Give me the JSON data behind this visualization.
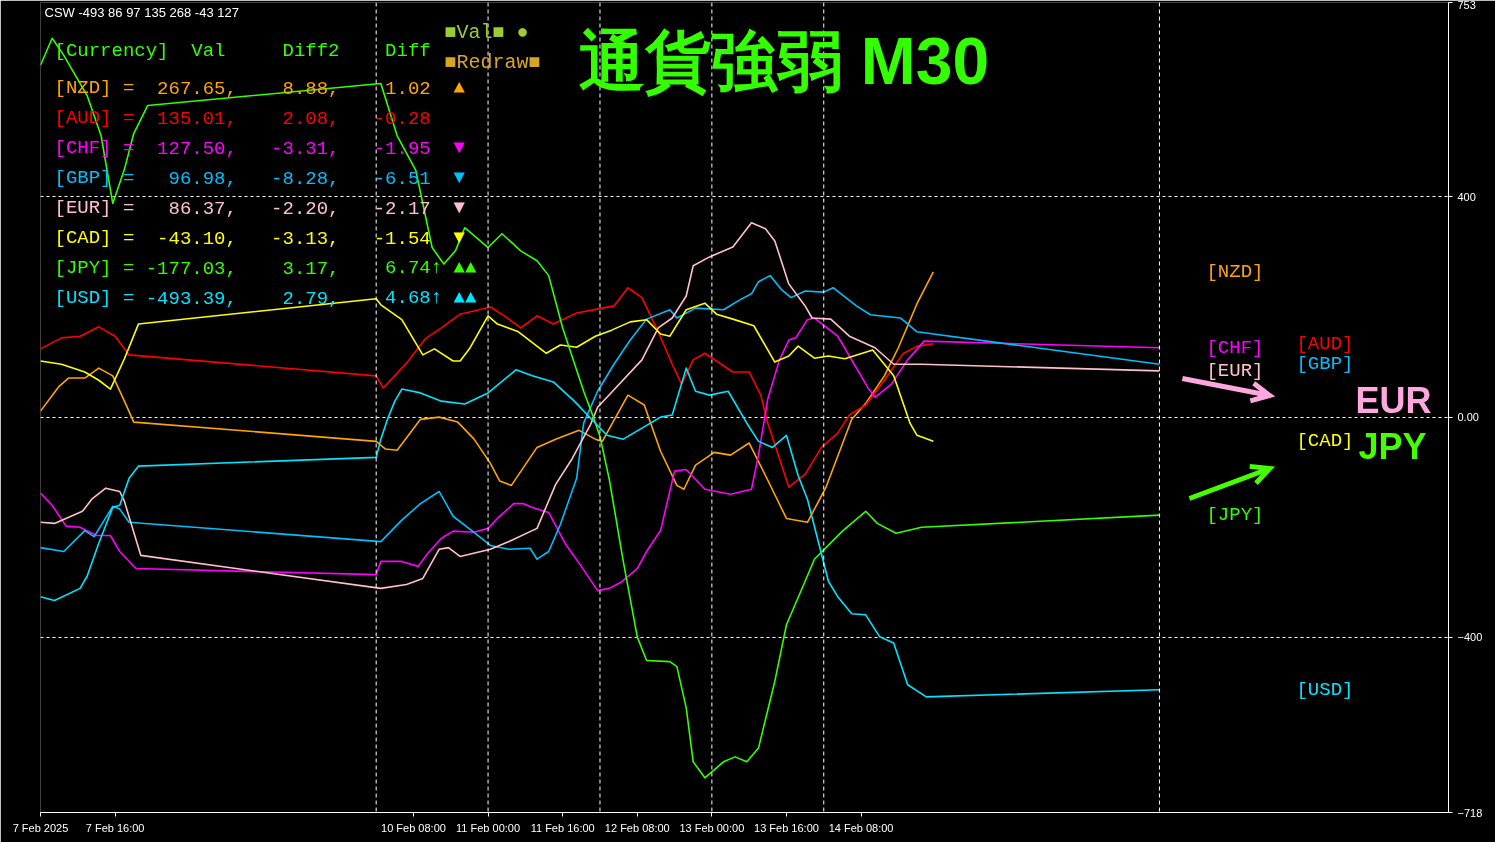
{
  "chart_data": {
    "type": "line",
    "title": "通貨強弱 M30",
    "line_style": "solid",
    "grid": "y",
    "legend": false,
    "annotations": [
      "CSW -493 86 97 135 268 -43 127",
      "[Currency]  Val     Diff2    Diff",
      "[NZD] =  267.65,    8.88,    1.02  ▲",
      "[AUD] =  135.01,    2.08,   -0.28",
      "[CHF] =  127.50,   -3.31,   -1.95  ▼",
      "[GBP] =   96.98,   -8.28,   -6.51  ▼",
      "[EUR] =   86.37,   -2.20,   -2.17  ▼",
      "[CAD] =  -43.10,   -3.13,   -1.54  ▼",
      "[JPY] = -177.03,    3.17,    6.74↑ ▲▲",
      "[USD] = -493.39,    2.79,    4.68↑ ▲▲",
      "■Val■ ●",
      "■Redraw■",
      "EUR",
      "JPY"
    ],
    "xlim": [
      "2025-02-07T00:00",
      "2025-02-19T14:00"
    ],
    "xticks": [
      {
        "value": "2025-02-07T00:00",
        "label": "7 Feb 2025"
      },
      {
        "value": "2025-02-07T16:00",
        "label": "7 Feb 16:00"
      },
      {
        "value": "2025-02-10T08:00",
        "label": "10 Feb 08:00"
      },
      {
        "value": "2025-02-11T00:00",
        "label": "11 Feb 00:00"
      },
      {
        "value": "2025-02-11T16:00",
        "label": "11 Feb 16:00"
      },
      {
        "value": "2025-02-12T08:00",
        "label": "12 Feb 08:00"
      },
      {
        "value": "2025-02-13T00:00",
        "label": "13 Feb 00:00"
      },
      {
        "value": "2025-02-13T16:00",
        "label": "13 Feb 16:00"
      },
      {
        "value": "2025-02-14T08:00",
        "label": "14 Feb 08:00"
      }
    ],
    "ylim": [
      -718,
      753
    ],
    "yticks": [
      753,
      400,
      {
        "value": 0,
        "label": "0.00"
      },
      -400,
      -718
    ],
    "ref_lines": [
      {
        "axis": "x",
        "value": "2025-02-10T00:00",
        "label": null,
        "color": "#ffffff",
        "line_style": "dashed"
      },
      {
        "axis": "x",
        "value": "2025-02-11T00:00",
        "label": null,
        "color": "#ffffff",
        "line_style": "dashed"
      },
      {
        "axis": "x",
        "value": "2025-02-12T00:00",
        "label": null,
        "color": "#ffffff",
        "line_style": "dashed"
      },
      {
        "axis": "x",
        "value": "2025-02-13T00:00",
        "label": null,
        "color": "#ffffff",
        "line_style": "dashed"
      },
      {
        "axis": "x",
        "value": "2025-02-14T00:00",
        "label": null,
        "color": "#ffffff",
        "line_style": "dashed"
      },
      {
        "axis": "x",
        "value": "2025-02-17T00:00",
        "label": null,
        "color": "#ffffff",
        "line_style": "dashed"
      }
    ],
    "series": [
      {
        "name": "[NZD]",
        "color": "#ffa500",
        "x": [
          "2025-02-07T00:00",
          "2025-02-07T04:00",
          "2025-02-07T06:00",
          "2025-02-07T09:30",
          "2025-02-07T12:30",
          "2025-02-07T15:30",
          "2025-02-07T18:00",
          "2025-02-07T20:00",
          "2025-02-10T00:00",
          "2025-02-10T02:00",
          "2025-02-10T04:30",
          "2025-02-10T09:30",
          "2025-02-10T13:30",
          "2025-02-10T17:30",
          "2025-02-10T21:00",
          "2025-02-11T00:30",
          "2025-02-11T02:30",
          "2025-02-11T05:00",
          "2025-02-11T10:30",
          "2025-02-11T14:30",
          "2025-02-11T19:30",
          "2025-02-11T23:00",
          "2025-02-12T00:30",
          "2025-02-12T06:00",
          "2025-02-12T09:30",
          "2025-02-12T13:00",
          "2025-02-12T16:30",
          "2025-02-12T18:00",
          "2025-02-12T20:30",
          "2025-02-13T00:30",
          "2025-02-13T04:00",
          "2025-02-13T08:00",
          "2025-02-13T11:30",
          "2025-02-13T16:00",
          "2025-02-13T20:30",
          "2025-02-14T00:30",
          "2025-02-14T06:00",
          "2025-02-14T09:00",
          "2025-02-14T13:00",
          "2025-02-14T16:00",
          "2025-02-14T20:00",
          "2025-02-14T23:30"
        ],
        "values": [
          11,
          56,
          71,
          71,
          89,
          75,
          29,
          -9,
          -44,
          -58,
          -60,
          -4,
          0,
          -9,
          -40,
          -84,
          -116,
          -124,
          -55,
          -40,
          -24,
          -40,
          -44,
          40,
          22,
          -62,
          -124,
          -131,
          -87,
          -64,
          -69,
          -47,
          -106,
          -184,
          -191,
          -127,
          -4,
          25,
          75,
          126,
          206,
          264
        ]
      },
      {
        "name": "[AUD]",
        "color": "#ff0000",
        "x": [
          "2025-02-07T00:00",
          "2025-02-07T04:30",
          "2025-02-07T08:30",
          "2025-02-07T12:30",
          "2025-02-07T16:00",
          "2025-02-07T19:00",
          "2025-02-10T00:00",
          "2025-02-10T01:30",
          "2025-02-10T06:30",
          "2025-02-10T10:30",
          "2025-02-10T14:00",
          "2025-02-10T18:00",
          "2025-02-11T00:30",
          "2025-02-11T03:30",
          "2025-02-11T07:00",
          "2025-02-11T10:30",
          "2025-02-11T14:00",
          "2025-02-11T19:00",
          "2025-02-12T00:00",
          "2025-02-12T03:00",
          "2025-02-12T06:00",
          "2025-02-12T09:00",
          "2025-02-12T12:30",
          "2025-02-12T15:30",
          "2025-02-12T17:30",
          "2025-02-12T20:00",
          "2025-02-12T22:30",
          "2025-02-13T04:30",
          "2025-02-13T08:00",
          "2025-02-13T10:30",
          "2025-02-13T12:00",
          "2025-02-13T16:30",
          "2025-02-13T20:00",
          "2025-02-13T23:30",
          "2025-02-14T03:00",
          "2025-02-14T05:30",
          "2025-02-14T09:00",
          "2025-02-14T13:00",
          "2025-02-14T17:00",
          "2025-02-14T20:00",
          "2025-02-14T23:30"
        ],
        "values": [
          124,
          144,
          147,
          164,
          147,
          113,
          75,
          53,
          98,
          142,
          162,
          187,
          200,
          184,
          162,
          184,
          169,
          189,
          197,
          202,
          235,
          217,
          155,
          96,
          60,
          104,
          116,
          82,
          82,
          40,
          -11,
          -127,
          -104,
          -55,
          -29,
          4,
          22,
          67,
          115,
          129,
          133
        ]
      },
      {
        "name": "[CHF]",
        "color": "#ff00ff",
        "x": [
          "2025-02-07T00:00",
          "2025-02-07T02:30",
          "2025-02-07T05:30",
          "2025-02-07T08:30",
          "2025-02-07T12:00",
          "2025-02-07T15:00",
          "2025-02-07T17:00",
          "2025-02-07T20:30",
          "2025-02-10T00:00",
          "2025-02-10T01:00",
          "2025-02-10T05:30",
          "2025-02-10T09:00",
          "2025-02-10T11:00",
          "2025-02-10T14:00",
          "2025-02-10T16:30",
          "2025-02-10T21:00",
          "2025-02-11T00:00",
          "2025-02-11T02:00",
          "2025-02-11T05:30",
          "2025-02-11T07:30",
          "2025-02-11T09:30",
          "2025-02-11T13:00",
          "2025-02-11T16:30",
          "2025-02-11T20:00",
          "2025-02-11T23:30",
          "2025-02-12T02:00",
          "2025-02-12T04:30",
          "2025-02-12T08:00",
          "2025-02-12T10:00",
          "2025-02-12T13:00",
          "2025-02-12T16:00",
          "2025-02-12T18:30",
          "2025-02-12T22:30",
          "2025-02-13T04:00",
          "2025-02-13T08:30",
          "2025-02-13T10:00",
          "2025-02-13T12:00",
          "2025-02-13T14:30",
          "2025-02-13T16:30",
          "2025-02-13T18:00",
          "2025-02-13T20:30",
          "2025-02-13T22:00",
          "2025-02-14T03:00",
          "2025-02-14T05:30",
          "2025-02-14T09:30",
          "2025-02-14T11:00",
          "2025-02-14T14:30",
          "2025-02-14T18:00",
          "2025-02-14T21:30",
          "2025-02-17T00:00"
        ],
        "values": [
          -138,
          -160,
          -198,
          -200,
          -215,
          -215,
          -244,
          -275,
          -286,
          -262,
          -262,
          -271,
          -248,
          -220,
          -207,
          -209,
          -202,
          -184,
          -157,
          -157,
          -164,
          -173,
          -229,
          -271,
          -315,
          -311,
          -300,
          -275,
          -244,
          -206,
          -98,
          -95,
          -131,
          -140,
          -131,
          -69,
          33,
          104,
          140,
          144,
          177,
          180,
          147,
          111,
          53,
          36,
          60,
          104,
          138,
          126
        ]
      },
      {
        "name": "[GBP]",
        "color": "#00bfff",
        "x": [
          "2025-02-07T00:00",
          "2025-02-07T05:00",
          "2025-02-07T09:30",
          "2025-02-07T11:30",
          "2025-02-07T15:30",
          "2025-02-07T17:00",
          "2025-02-07T19:00",
          "2025-02-10T01:00",
          "2025-02-10T05:30",
          "2025-02-10T09:30",
          "2025-02-10T13:30",
          "2025-02-10T16:30",
          "2025-02-10T20:30",
          "2025-02-11T00:30",
          "2025-02-11T04:30",
          "2025-02-11T09:00",
          "2025-02-11T10:30",
          "2025-02-11T13:00",
          "2025-02-11T15:30",
          "2025-02-11T19:00",
          "2025-02-11T20:30",
          "2025-02-11T23:30",
          "2025-02-12T03:00",
          "2025-02-12T06:30",
          "2025-02-12T10:00",
          "2025-02-12T15:00",
          "2025-02-12T16:30",
          "2025-02-12T20:30",
          "2025-02-13T02:30",
          "2025-02-13T06:00",
          "2025-02-13T08:30",
          "2025-02-13T10:00",
          "2025-02-13T12:30",
          "2025-02-13T15:00",
          "2025-02-13T17:00",
          "2025-02-13T20:00",
          "2025-02-14T00:00",
          "2025-02-14T02:00",
          "2025-02-14T07:00",
          "2025-02-14T10:00",
          "2025-02-14T16:30",
          "2025-02-14T20:00",
          "2025-02-17T00:00"
        ],
        "values": [
          -237,
          -244,
          -206,
          -217,
          -162,
          -167,
          -191,
          -226,
          -187,
          -157,
          -135,
          -180,
          -206,
          -233,
          -240,
          -238,
          -258,
          -244,
          -195,
          -111,
          -11,
          47,
          96,
          140,
          178,
          195,
          180,
          198,
          195,
          213,
          224,
          246,
          257,
          231,
          217,
          229,
          227,
          235,
          202,
          186,
          180,
          155,
          96
        ]
      },
      {
        "name": "[EUR]",
        "color": "#ffc0cb",
        "x": [
          "2025-02-07T00:00",
          "2025-02-07T03:00",
          "2025-02-07T09:00",
          "2025-02-07T11:00",
          "2025-02-07T14:00",
          "2025-02-07T17:00",
          "2025-02-07T18:00",
          "2025-02-07T21:30",
          "2025-02-10T01:00",
          "2025-02-10T06:30",
          "2025-02-10T10:00",
          "2025-02-10T13:30",
          "2025-02-10T15:30",
          "2025-02-10T18:00",
          "2025-02-11T00:30",
          "2025-02-11T04:30",
          "2025-02-11T10:30",
          "2025-02-11T14:30",
          "2025-02-11T18:00",
          "2025-02-11T22:00",
          "2025-02-11T23:30",
          "2025-02-12T09:00",
          "2025-02-12T12:30",
          "2025-02-12T15:30",
          "2025-02-12T18:30",
          "2025-02-12T20:00",
          "2025-02-12T23:30",
          "2025-02-13T04:30",
          "2025-02-13T08:30",
          "2025-02-13T11:30",
          "2025-02-13T13:30",
          "2025-02-13T16:30",
          "2025-02-13T20:00",
          "2025-02-13T21:30",
          "2025-02-14T01:30",
          "2025-02-14T05:30",
          "2025-02-14T11:00",
          "2025-02-14T15:00",
          "2025-02-14T21:00",
          "2025-02-17T00:00"
        ],
        "values": [
          -191,
          -193,
          -171,
          -149,
          -129,
          -135,
          -153,
          -251,
          -311,
          -304,
          -293,
          -240,
          -237,
          -253,
          -240,
          -226,
          -202,
          -122,
          -76,
          -13,
          18,
          104,
          162,
          180,
          220,
          275,
          291,
          309,
          353,
          342,
          320,
          242,
          202,
          180,
          178,
          147,
          126,
          96,
          96,
          84
        ]
      },
      {
        "name": "[CAD]",
        "color": "#ffff00",
        "x": [
          "2025-02-07T00:00",
          "2025-02-07T04:30",
          "2025-02-07T09:30",
          "2025-02-07T12:30",
          "2025-02-07T15:00",
          "2025-02-07T18:00",
          "2025-02-07T21:00",
          "2025-02-10T00:00",
          "2025-02-10T01:00",
          "2025-02-10T05:30",
          "2025-02-10T10:00",
          "2025-02-10T12:30",
          "2025-02-10T16:30",
          "2025-02-10T18:00",
          "2025-02-10T20:00",
          "2025-02-11T00:00",
          "2025-02-11T02:00",
          "2025-02-11T06:30",
          "2025-02-11T12:30",
          "2025-02-11T15:30",
          "2025-02-11T19:00",
          "2025-02-11T23:00",
          "2025-02-12T02:30",
          "2025-02-12T06:30",
          "2025-02-12T10:00",
          "2025-02-12T13:00",
          "2025-02-12T15:00",
          "2025-02-12T18:30",
          "2025-02-12T22:30",
          "2025-02-13T01:00",
          "2025-02-13T04:30",
          "2025-02-13T09:00",
          "2025-02-13T13:30",
          "2025-02-13T16:30",
          "2025-02-13T18:30",
          "2025-02-13T22:00",
          "2025-02-14T01:00",
          "2025-02-14T04:30",
          "2025-02-14T10:30",
          "2025-02-14T15:00",
          "2025-02-14T18:30",
          "2025-02-14T20:00",
          "2025-02-14T23:30"
        ],
        "values": [
          102,
          96,
          82,
          67,
          51,
          106,
          169,
          215,
          204,
          177,
          113,
          124,
          102,
          102,
          124,
          184,
          169,
          155,
          116,
          131,
          127,
          147,
          158,
          173,
          177,
          151,
          147,
          195,
          207,
          187,
          178,
          166,
          100,
          111,
          129,
          107,
          111,
          106,
          122,
          75,
          -11,
          -33,
          -44
        ]
      },
      {
        "name": "[JPY]",
        "color": "#33ff00",
        "x": [
          "2025-02-07T00:00",
          "2025-02-07T02:30",
          "2025-02-07T05:00",
          "2025-02-07T10:00",
          "2025-02-07T13:00",
          "2025-02-07T15:30",
          "2025-02-07T18:00",
          "2025-02-07T20:00",
          "2025-02-07T23:00",
          "2025-02-10T01:00",
          "2025-02-10T04:30",
          "2025-02-10T08:30",
          "2025-02-10T12:00",
          "2025-02-10T14:30",
          "2025-02-10T17:00",
          "2025-02-10T19:00",
          "2025-02-11T00:00",
          "2025-02-11T03:00",
          "2025-02-11T07:00",
          "2025-02-11T10:30",
          "2025-02-11T13:00",
          "2025-02-11T16:00",
          "2025-02-11T20:30",
          "2025-02-11T22:30",
          "2025-02-12T00:00",
          "2025-02-12T02:00",
          "2025-02-12T05:00",
          "2025-02-12T08:00",
          "2025-02-12T10:00",
          "2025-02-12T15:00",
          "2025-02-12T16:30",
          "2025-02-12T18:30",
          "2025-02-12T20:00",
          "2025-02-12T22:30",
          "2025-02-13T02:30",
          "2025-02-13T05:00",
          "2025-02-13T07:30",
          "2025-02-13T10:00",
          "2025-02-13T13:30",
          "2025-02-13T16:00",
          "2025-02-13T20:00",
          "2025-02-13T22:00",
          "2025-02-14T00:30",
          "2025-02-14T04:00",
          "2025-02-14T09:00",
          "2025-02-14T11:30",
          "2025-02-14T15:30",
          "2025-02-14T21:00",
          "2025-02-17T00:00"
        ],
        "values": [
          639,
          688,
          657,
          584,
          511,
          388,
          450,
          515,
          566,
          606,
          511,
          448,
          308,
          278,
          302,
          344,
          308,
          333,
          302,
          284,
          257,
          162,
          47,
          2,
          -35,
          -113,
          -262,
          -399,
          -442,
          -444,
          -453,
          -528,
          -626,
          -655,
          -626,
          -617,
          -626,
          -601,
          -480,
          -377,
          -298,
          -258,
          -237,
          -207,
          -171,
          -193,
          -211,
          -200,
          -178
        ]
      },
      {
        "name": "[USD]",
        "color": "#00e5ff",
        "x": [
          "2025-02-07T00:00",
          "2025-02-07T03:00",
          "2025-02-07T08:30",
          "2025-02-07T10:00",
          "2025-02-07T12:30",
          "2025-02-07T15:30",
          "2025-02-07T17:00",
          "2025-02-07T19:00",
          "2025-02-07T21:00",
          "2025-02-10T00:00",
          "2025-02-10T01:00",
          "2025-02-10T02:30",
          "2025-02-10T04:00",
          "2025-02-10T05:30",
          "2025-02-10T09:30",
          "2025-02-10T14:00",
          "2025-02-10T19:00",
          "2025-02-11T00:00",
          "2025-02-11T06:00",
          "2025-02-11T09:30",
          "2025-02-11T14:00",
          "2025-02-11T18:30",
          "2025-02-11T22:00",
          "2025-02-12T01:30",
          "2025-02-12T05:00",
          "2025-02-12T10:00",
          "2025-02-12T13:00",
          "2025-02-12T15:30",
          "2025-02-12T18:30",
          "2025-02-12T20:30",
          "2025-02-12T23:30",
          "2025-02-13T03:30",
          "2025-02-13T07:30",
          "2025-02-13T10:00",
          "2025-02-13T13:00",
          "2025-02-13T16:00",
          "2025-02-13T18:30",
          "2025-02-13T20:30",
          "2025-02-14T01:00",
          "2025-02-14T03:00",
          "2025-02-14T06:00",
          "2025-02-14T09:00",
          "2025-02-14T12:00",
          "2025-02-14T15:00",
          "2025-02-14T18:00",
          "2025-02-14T22:00",
          "2025-02-17T00:00"
        ],
        "values": [
          -326,
          -333,
          -311,
          -289,
          -229,
          -164,
          -160,
          -111,
          -89,
          -73,
          -40,
          -2,
          29,
          51,
          44,
          29,
          24,
          44,
          86,
          75,
          64,
          29,
          -2,
          -33,
          -40,
          -15,
          0,
          4,
          89,
          47,
          40,
          47,
          -11,
          -44,
          -55,
          -33,
          -106,
          -149,
          -298,
          -326,
          -357,
          -359,
          -399,
          -410,
          -486,
          -508,
          -495
        ]
      }
    ]
  }
}
